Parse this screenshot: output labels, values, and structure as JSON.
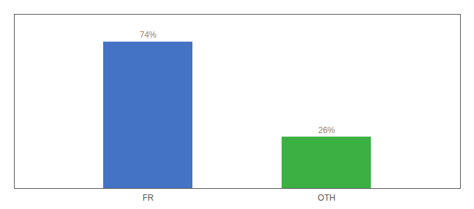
{
  "chart_data": {
    "type": "bar",
    "categories": [
      "FR",
      "OTH"
    ],
    "values": [
      74,
      26
    ],
    "value_labels": [
      "74%",
      "26%"
    ],
    "colors": [
      "#4472c4",
      "#3cb043"
    ],
    "ylim": [
      0,
      88
    ],
    "data_labels": true,
    "tick_labels": "x",
    "grid": false
  }
}
